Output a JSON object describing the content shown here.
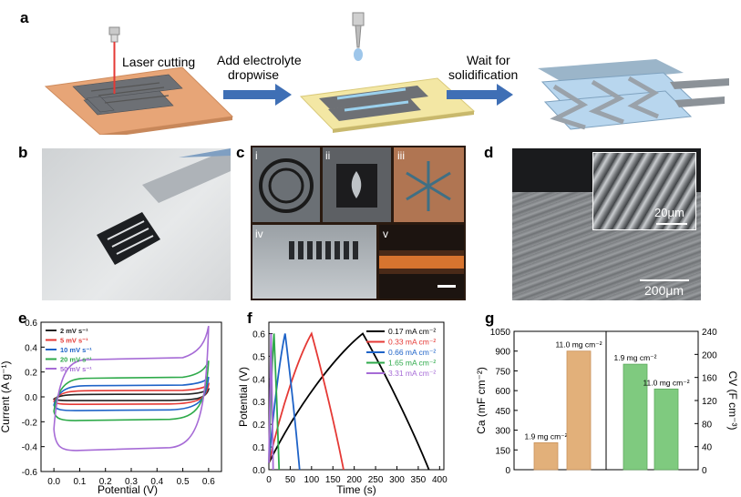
{
  "panels": {
    "a": {
      "label": "a",
      "step1": "Laser cutting",
      "step2_line1": "Add electrolyte",
      "step2_line2": "dropwise",
      "step3_line1": "Wait for",
      "step3_line2": "solidification"
    },
    "b": {
      "label": "b"
    },
    "c": {
      "label": "c",
      "subs": [
        "i",
        "ii",
        "iii",
        "iv",
        "v"
      ]
    },
    "d": {
      "label": "d",
      "inset_scale": "20μm",
      "main_scale": "200μm"
    },
    "e": {
      "label": "e"
    },
    "f": {
      "label": "f"
    },
    "g": {
      "label": "g"
    }
  },
  "chart_data": [
    {
      "id": "e",
      "type": "line",
      "xlabel": "Potential (V)",
      "ylabel": "Current (A g⁻¹)",
      "xlim": [
        -0.05,
        0.65
      ],
      "ylim": [
        -0.6,
        0.6
      ],
      "xticks": [
        "0.0",
        "0.1",
        "0.2",
        "0.3",
        "0.4",
        "0.5",
        "0.6"
      ],
      "yticks": [
        "-0.6",
        "-0.4",
        "-0.2",
        "0.0",
        "0.2",
        "0.4",
        "0.6"
      ],
      "legend_position": "top-left",
      "series": [
        {
          "name": "2 mV s⁻¹",
          "color": "#222222",
          "top": 0.02,
          "bottom": -0.03,
          "tail": 0.06
        },
        {
          "name": "5 mV s⁻¹",
          "color": "#e53935",
          "top": 0.05,
          "bottom": -0.06,
          "tail": 0.1
        },
        {
          "name": "10 mV s⁻¹",
          "color": "#1e63c8",
          "top": 0.09,
          "bottom": -0.11,
          "tail": 0.16
        },
        {
          "name": "20 mV s⁻¹",
          "color": "#2eaa4a",
          "top": 0.15,
          "bottom": -0.19,
          "tail": 0.29
        },
        {
          "name": "50 mV s⁻¹",
          "color": "#a66bd6",
          "top": 0.3,
          "bottom": -0.43,
          "tail": 0.57
        }
      ]
    },
    {
      "id": "f",
      "type": "line",
      "xlabel": "Time (s)",
      "ylabel": "Potential (V)",
      "xlim": [
        0,
        410
      ],
      "ylim": [
        0,
        0.65
      ],
      "xticks": [
        "0",
        "50",
        "100",
        "150",
        "200",
        "250",
        "300",
        "350",
        "400"
      ],
      "yticks": [
        "0.0",
        "0.1",
        "0.2",
        "0.3",
        "0.4",
        "0.5",
        "0.6"
      ],
      "legend_position": "top-right",
      "series": [
        {
          "name": "0.17 mA cm⁻²",
          "color": "#000000",
          "peak_t": 220,
          "end_t": 375
        },
        {
          "name": "0.33 mA cm⁻²",
          "color": "#e53935",
          "peak_t": 100,
          "end_t": 175
        },
        {
          "name": "0.66 mA cm⁻²",
          "color": "#1e63c8",
          "peak_t": 38,
          "end_t": 72
        },
        {
          "name": "1.65 mA cm⁻²",
          "color": "#2eaa4a",
          "peak_t": 12,
          "end_t": 24
        },
        {
          "name": "3.31 mA cm⁻²",
          "color": "#a66bd6",
          "peak_t": 5,
          "end_t": 10
        }
      ]
    },
    {
      "id": "g",
      "type": "bar",
      "ylabel_left": "Ca (mF cm⁻²)",
      "ylabel_right": "CV (F cm⁻³)",
      "ylim_left": [
        0,
        1050
      ],
      "ylim_right": [
        0,
        240
      ],
      "yticks_left": [
        "0",
        "150",
        "300",
        "450",
        "600",
        "750",
        "900",
        "1050"
      ],
      "yticks_right": [
        "0",
        "40",
        "80",
        "120",
        "160",
        "200",
        "240"
      ],
      "left_bars": [
        {
          "label": "1.9 mg cm⁻²",
          "value": 205,
          "color": "#e2b07a"
        },
        {
          "label": "11.0 mg cm⁻²",
          "value": 900,
          "color": "#e2b07a"
        }
      ],
      "right_bars": [
        {
          "label": "1.9 mg cm⁻²",
          "value": 183,
          "color": "#7fca7f"
        },
        {
          "label": "11.0 mg cm⁻²",
          "value": 140,
          "color": "#7fca7f"
        }
      ]
    }
  ]
}
